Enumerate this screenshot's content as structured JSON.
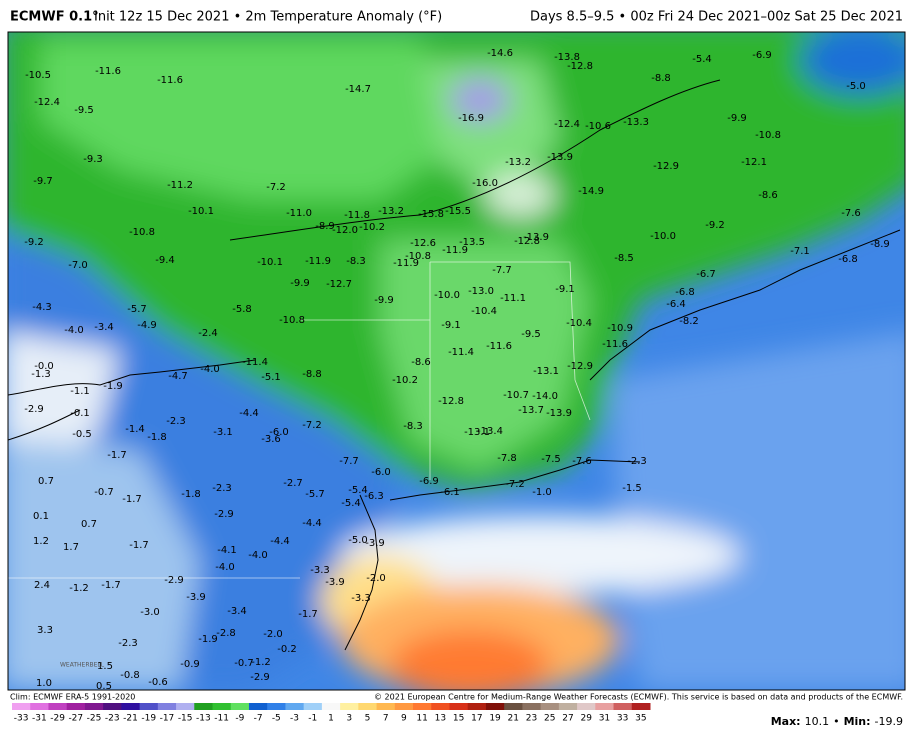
{
  "header": {
    "title": "ECMWF 0.1°",
    "subtitle": "Init 12z 15 Dec 2021 • 2m Temperature Anomaly (°F)",
    "valid": "Days 8.5–9.5 • 00z Fri 24 Dec 2021–00z Sat 25 Dec 2021"
  },
  "map": {
    "labels": [
      "-10.5",
      "-11.6",
      "-11.6",
      "-14.7",
      "-14.6",
      "-13.8",
      "-12.8",
      "-5.4",
      "-6.9",
      "-5.0",
      "-12.4",
      "-9.5",
      "-8.8",
      "-16.9",
      "-12.4",
      "-10.6",
      "-13.3",
      "-9.9",
      "-10.8",
      "-9.3",
      "-13.2",
      "-13.9",
      "-12.9",
      "-12.1",
      "-9.7",
      "-11.2",
      "-7.2",
      "-16.0",
      "-14.9",
      "-8.6",
      "-10.1",
      "-11.0",
      "-11.8",
      "-13.2",
      "-15.8",
      "-15.5",
      "-7.6",
      "-10.8",
      "-8.9",
      "-12.0",
      "-10.2",
      "-12.6",
      "-13.5",
      "-12.8",
      "-13.9",
      "-10.0",
      "-9.2",
      "-8.9",
      "-9.2",
      "-11.9",
      "-10.8",
      "-9.4",
      "-10.1",
      "-11.9",
      "-8.3",
      "-11.9",
      "-8.5",
      "-7.1",
      "-6.8",
      "-7.0",
      "-7.7",
      "-6.7",
      "-12.7",
      "-9.9",
      "-13.0",
      "-11.1",
      "-9.1",
      "-6.8",
      "-6.4",
      "-4.3",
      "-5.7",
      "-5.8",
      "-9.9",
      "-10.0",
      "-10.4",
      "-10.8",
      "-4.0",
      "-3.4",
      "-4.9",
      "-2.4",
      "-9.1",
      "-11.6",
      "-10.4",
      "-10.9",
      "-8.2",
      "-11.6",
      "-11.4",
      "-9.5",
      "-11.4",
      "-8.8",
      "-10.2",
      "-8.6",
      "-13.1",
      "-12.9",
      "-0.0",
      "-1.3",
      "-4.7",
      "-4.0",
      "-5.1",
      "-1.9",
      "-1.1",
      "-10.7",
      "-14.0",
      "-12.8",
      "-13.7",
      "-13.9",
      "-2.9",
      "-0.1",
      "-4.4",
      "-2.3",
      "-7.2",
      "-8.3",
      "-13.1",
      "-13.4",
      "-0.5",
      "-1.4",
      "-1.8",
      "-3.1",
      "-6.0",
      "-3.6",
      "-1.7",
      "-7.7",
      "-6.0",
      "-7.8",
      "-7.5",
      "-7.6",
      "-2.3",
      "0.7",
      "-2.7",
      "-6.9",
      "-5.4",
      "-6.3",
      "-6.1",
      "-7.2",
      "-1.0",
      "-1.5",
      "-0.7",
      "-1.8",
      "-2.3",
      "-1.7",
      "-5.7",
      "-5.4",
      "0.1",
      "-2.9",
      "0.7",
      "-4.4",
      "1.2",
      "1.7",
      "-1.7",
      "-5.0",
      "-3.9",
      "-4.4",
      "-4.1",
      "-4.0",
      "-3.3",
      "-4.0",
      "-2.0",
      "-3.9",
      "2.4",
      "-1.2",
      "-1.7",
      "-2.9",
      "-3.9",
      "-3.0",
      "-3.4",
      "-1.7",
      "-3.3",
      "3.3",
      "-2.3",
      "-2.8",
      "-1.9",
      "-2.0",
      "-0.9",
      "1.5",
      "0.5",
      "-0.8",
      "-0.6",
      "-0.2",
      "-1.2",
      "-0.7",
      "-2.9",
      "1.0"
    ]
  },
  "footer": {
    "climatology": "Clim: ECMWF ERA-5 1991-2020",
    "copyright": "© 2021 European Centre for Medium-Range Weather Forecasts (ECMWF). This service is based on data and products of the ECMWF.",
    "logo": "WEATHERBELL"
  },
  "colorbar": {
    "ticks": [
      -33,
      -31,
      -29,
      -27,
      -25,
      -23,
      -21,
      -19,
      -17,
      -15,
      -13,
      -11,
      -9,
      -7,
      -5,
      -3,
      -1,
      1,
      3,
      5,
      7,
      9,
      11,
      13,
      15,
      17,
      19,
      21,
      23,
      25,
      27,
      29,
      31,
      33,
      35
    ],
    "colors": [
      "#f0a0f0",
      "#e070e0",
      "#c040c0",
      "#a020a0",
      "#801890",
      "#501080",
      "#3010a0",
      "#5050c8",
      "#8080e0",
      "#b0b0f0",
      "#20a020",
      "#30c030",
      "#60e060",
      "#1060d0",
      "#3080e8",
      "#60a8f0",
      "#a0d0f8",
      "#f8f8f8",
      "#fff0a0",
      "#ffd870",
      "#ffb850",
      "#ff9840",
      "#ff7830",
      "#f05020",
      "#d83018",
      "#b02010",
      "#801008",
      "#6a5040",
      "#8a7060",
      "#a89080",
      "#c0b0a0",
      "#e0c8c8",
      "#e8a0a0",
      "#d06060",
      "#b02020"
    ]
  },
  "stats": {
    "max_label": "Max:",
    "max": 10.1,
    "separator": "•",
    "min_label": "Min:",
    "min": -19.9
  }
}
